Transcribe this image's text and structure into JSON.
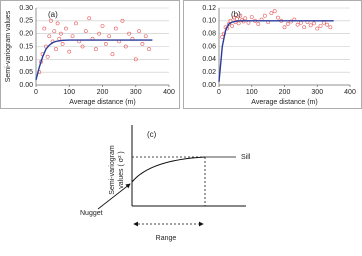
{
  "chart_data": [
    {
      "type": "scatter",
      "label": "(a)",
      "x_label": "Average distance (m)",
      "y_label": "Semi-variogram values",
      "xlim": [
        0,
        400
      ],
      "xticks": [
        0,
        100,
        200,
        300,
        400
      ],
      "ylim": [
        0,
        0.3
      ],
      "yticks": [
        {
          "value": 0,
          "label": "0.00"
        },
        {
          "value": 0.05,
          "label": "0.05"
        },
        {
          "value": 0.1,
          "label": "0.10"
        },
        {
          "value": 0.15,
          "label": "0.15"
        },
        {
          "value": 0.2,
          "label": "0.20"
        },
        {
          "value": 0.25,
          "label": "0.25"
        },
        {
          "value": 0.3,
          "label": "0.30"
        }
      ],
      "grid": true,
      "series": [
        {
          "type": "scatter",
          "color": "#e8585a",
          "x": [
            10,
            15,
            20,
            25,
            30,
            35,
            40,
            45,
            50,
            55,
            60,
            65,
            70,
            75,
            80,
            90,
            100,
            110,
            120,
            130,
            140,
            150,
            160,
            170,
            180,
            190,
            200,
            210,
            220,
            230,
            240,
            250,
            260,
            270,
            280,
            290,
            300,
            310,
            320,
            330,
            340
          ],
          "values": [
            0.05,
            0.09,
            0.12,
            0.22,
            0.15,
            0.11,
            0.19,
            0.25,
            0.17,
            0.21,
            0.14,
            0.24,
            0.18,
            0.2,
            0.16,
            0.22,
            0.13,
            0.19,
            0.24,
            0.17,
            0.15,
            0.21,
            0.26,
            0.18,
            0.14,
            0.2,
            0.23,
            0.16,
            0.19,
            0.12,
            0.22,
            0.17,
            0.25,
            0.15,
            0.2,
            0.18,
            0.1,
            0.21,
            0.16,
            0.19,
            0.14
          ]
        },
        {
          "type": "line",
          "color": "#2a3b9c",
          "x": [
            0,
            10,
            20,
            30,
            40,
            50,
            60,
            80,
            100,
            150,
            200,
            250,
            300,
            350
          ],
          "values": [
            0.02,
            0.07,
            0.11,
            0.14,
            0.155,
            0.165,
            0.17,
            0.174,
            0.175,
            0.175,
            0.175,
            0.175,
            0.175,
            0.175
          ]
        }
      ]
    },
    {
      "type": "scatter",
      "label": "(b)",
      "x_label": "Average distance (m)",
      "xlim": [
        0,
        400
      ],
      "xticks": [
        0,
        100,
        200,
        300,
        400
      ],
      "ylim": [
        0,
        0.12
      ],
      "yticks": [
        {
          "value": 0,
          "label": "0.00"
        },
        {
          "value": 0.02,
          "label": "0.02"
        },
        {
          "value": 0.04,
          "label": "0.04"
        },
        {
          "value": 0.06,
          "label": "0.06"
        },
        {
          "value": 0.08,
          "label": "0.08"
        },
        {
          "value": 0.1,
          "label": "0.10"
        },
        {
          "value": 0.12,
          "label": "0.12"
        }
      ],
      "grid": true,
      "series": [
        {
          "type": "scatter",
          "color": "#e8585a",
          "x": [
            10,
            15,
            20,
            25,
            30,
            35,
            40,
            45,
            50,
            55,
            60,
            65,
            70,
            75,
            80,
            90,
            100,
            110,
            120,
            130,
            140,
            150,
            160,
            170,
            180,
            190,
            200,
            210,
            220,
            230,
            240,
            250,
            260,
            270,
            280,
            290,
            300,
            310,
            320,
            330,
            340
          ],
          "values": [
            0.075,
            0.08,
            0.09,
            0.088,
            0.095,
            0.1,
            0.092,
            0.105,
            0.098,
            0.103,
            0.096,
            0.108,
            0.101,
            0.099,
            0.104,
            0.097,
            0.106,
            0.1,
            0.095,
            0.102,
            0.108,
            0.098,
            0.112,
            0.115,
            0.105,
            0.1,
            0.09,
            0.095,
            0.099,
            0.102,
            0.094,
            0.097,
            0.09,
            0.098,
            0.093,
            0.096,
            0.088,
            0.092,
            0.097,
            0.094,
            0.09
          ]
        },
        {
          "type": "line",
          "color": "#2a3b9c",
          "x": [
            0,
            10,
            20,
            30,
            40,
            50,
            60,
            80,
            100,
            200,
            300,
            350
          ],
          "values": [
            0.005,
            0.06,
            0.085,
            0.095,
            0.098,
            0.099,
            0.1,
            0.1,
            0.1,
            0.1,
            0.1,
            0.1
          ]
        }
      ]
    }
  ],
  "diagram": {
    "label": "(c)",
    "sill": "Sill",
    "y_label_lines": [
      "Semi-variogram",
      "values ( σ² )"
    ],
    "nugget": "Nugget",
    "range": "Range"
  }
}
